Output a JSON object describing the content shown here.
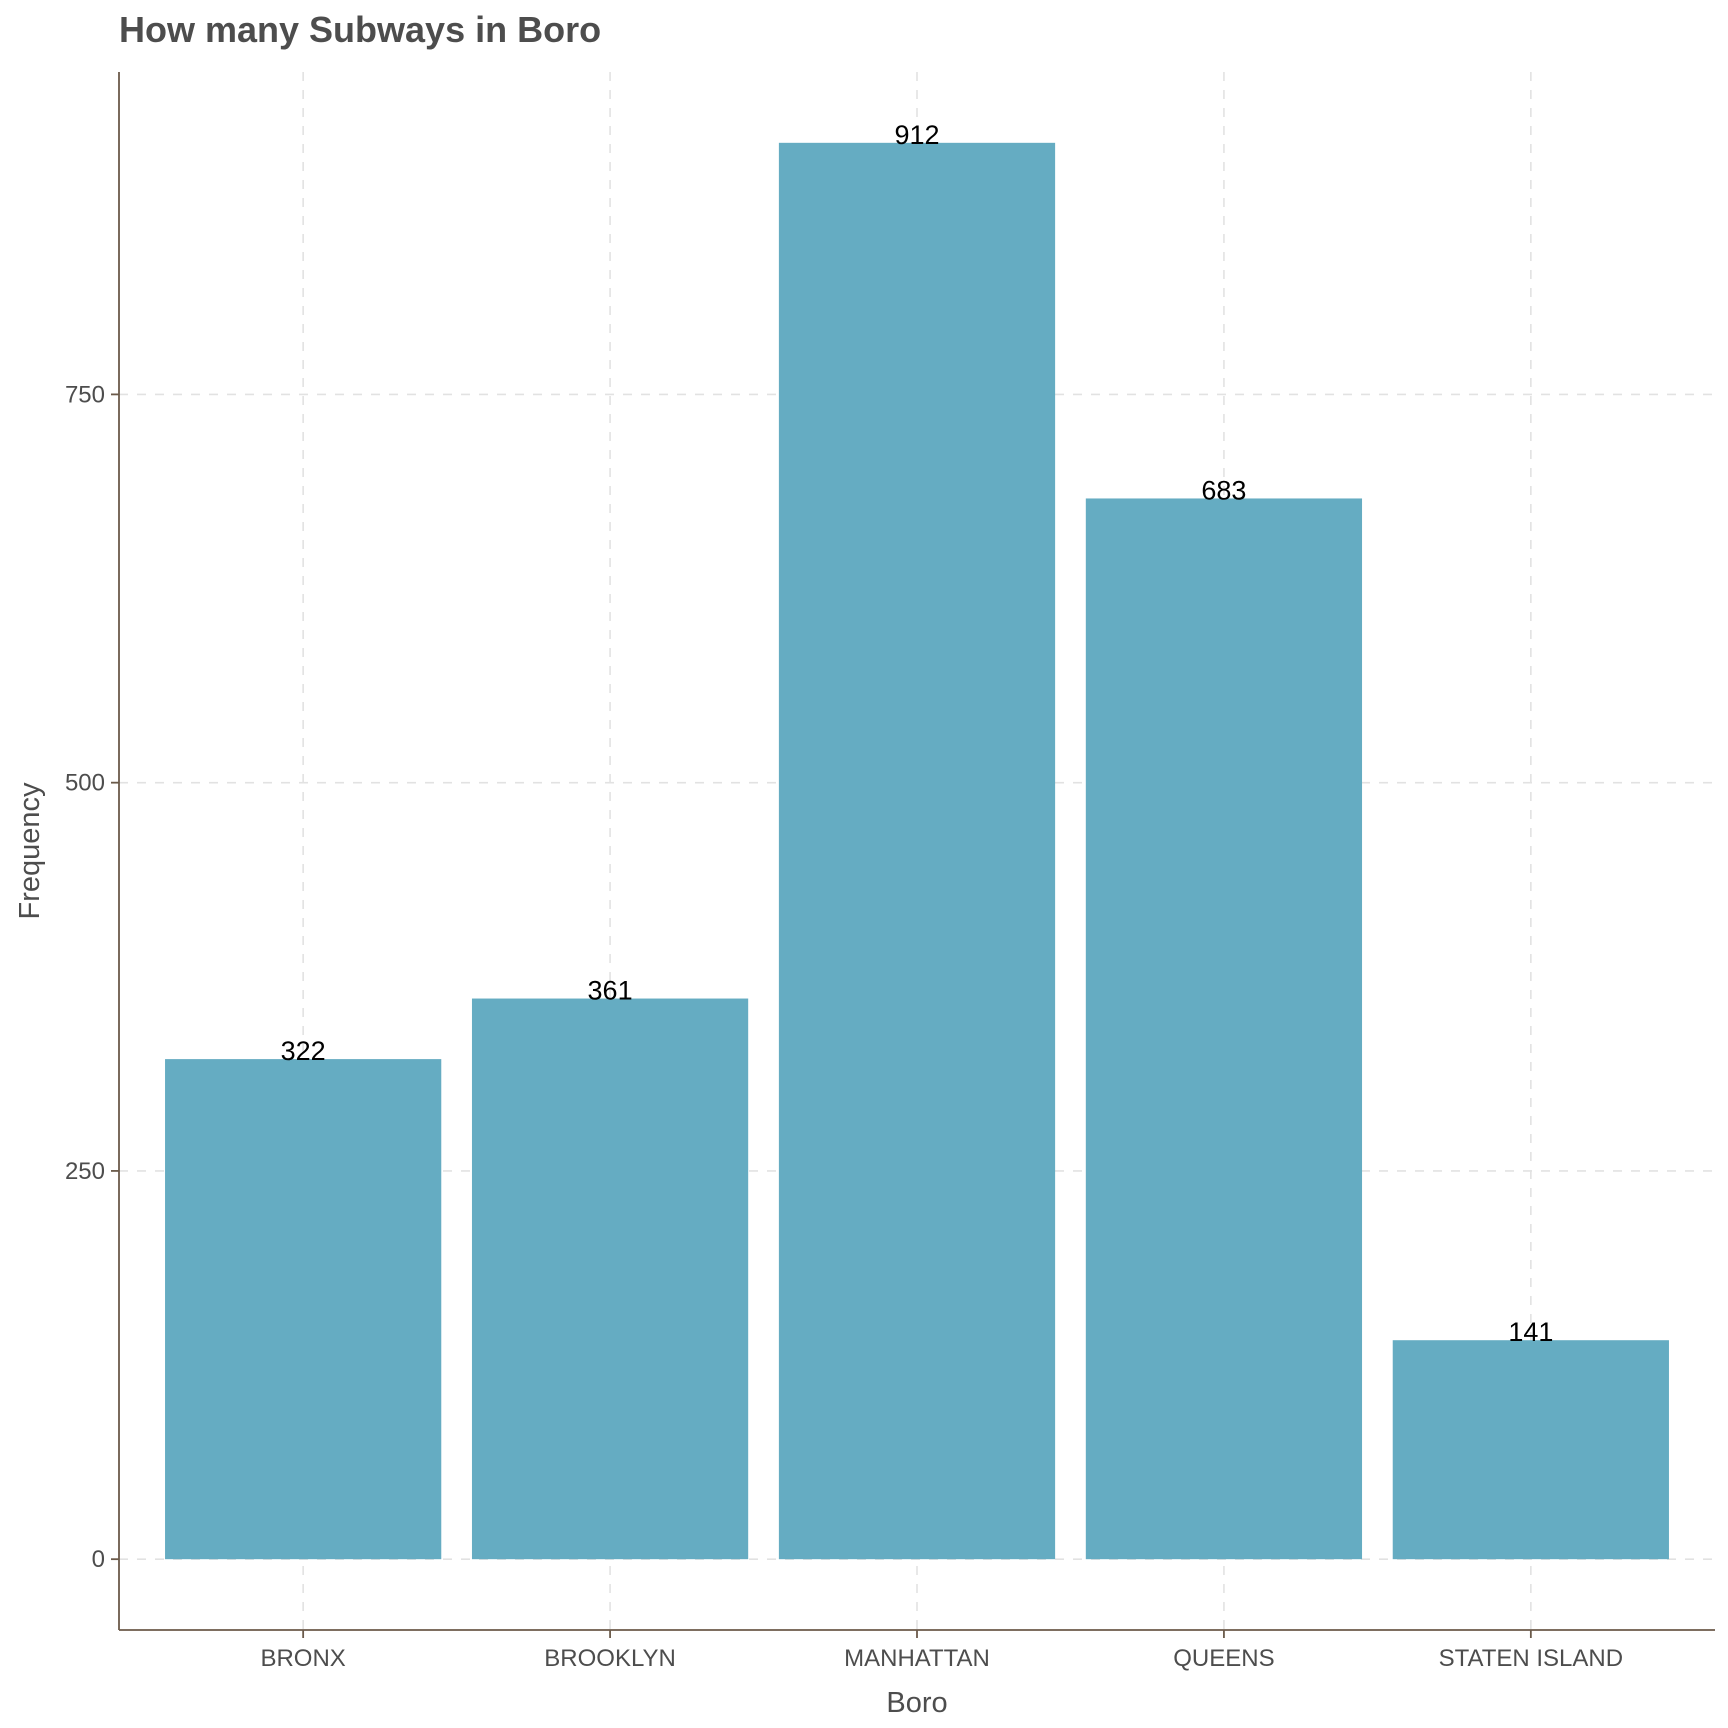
{
  "chart_data": {
    "type": "bar",
    "title": "How many Subways in Boro",
    "xlabel": "Boro",
    "ylabel": "Frequency",
    "categories": [
      "BRONX",
      "BROOKLYN",
      "MANHATTAN",
      "QUEENS",
      "STATEN ISLAND"
    ],
    "values": [
      322,
      361,
      912,
      683,
      141
    ],
    "data_labels": [
      "322",
      "361",
      "912",
      "683",
      "141"
    ],
    "yticks": [
      0,
      250,
      500,
      750
    ],
    "ytick_labels": [
      "0",
      "250",
      "500",
      "750"
    ],
    "ylim": [
      -45.6,
      957.6
    ],
    "grid": true,
    "legend": "none",
    "bar_color": "#65acc2"
  }
}
